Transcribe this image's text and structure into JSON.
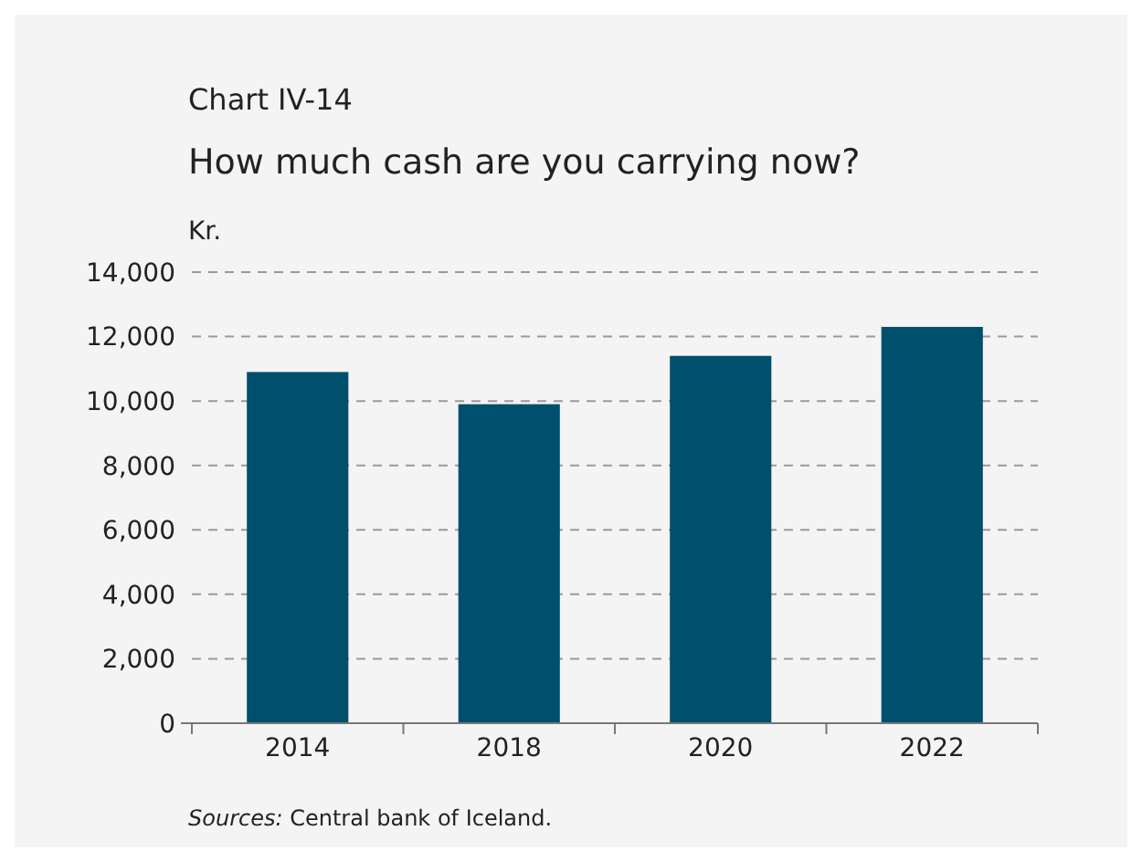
{
  "chart_data": {
    "type": "bar",
    "title": "Chart IV-14",
    "subtitle": "How much cash are you carrying now?",
    "ylabel": "Kr.",
    "categories": [
      "2014",
      "2018",
      "2020",
      "2022"
    ],
    "values": [
      10900,
      9900,
      11400,
      12300
    ],
    "color": "#004f6d",
    "ylim": [
      0,
      14000
    ],
    "yticks": [
      {
        "value": 0,
        "label": "0"
      },
      {
        "value": 2000,
        "label": "2,000"
      },
      {
        "value": 4000,
        "label": "4,000"
      },
      {
        "value": 6000,
        "label": "6,000"
      },
      {
        "value": 8000,
        "label": "8,000"
      },
      {
        "value": 10000,
        "label": "10,000"
      },
      {
        "value": 12000,
        "label": "12,000"
      },
      {
        "value": 14000,
        "label": "14,000"
      }
    ],
    "grid": "y",
    "annotations": [
      "Sources: Central bank of Iceland."
    ]
  }
}
